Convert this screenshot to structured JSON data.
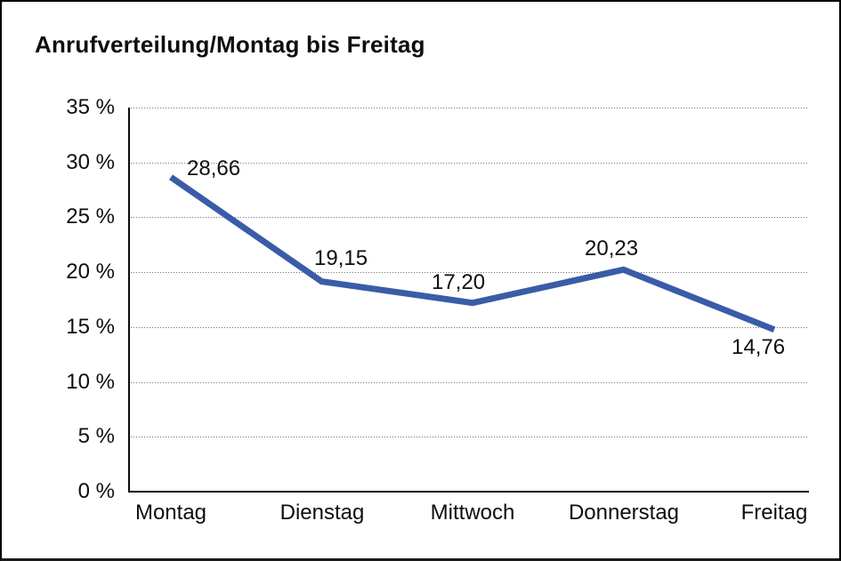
{
  "chart": {
    "line_color": "#3a5ca8",
    "grid_color": "#737373",
    "axis_color": "#0a0a0a",
    "text_color": "#0e0e0e",
    "background": "#ffffff"
  },
  "chart_data": {
    "type": "line",
    "title": "Anrufverteilung/Montag bis Freitag",
    "categories": [
      "Montag",
      "Dienstag",
      "Mittwoch",
      "Donnerstag",
      "Freitag"
    ],
    "series": [
      {
        "name": "Anrufverteilung",
        "values": [
          28.66,
          19.15,
          17.2,
          20.23,
          14.76
        ],
        "point_labels": [
          "28,66",
          "19,15",
          "17,20",
          "20,23",
          "14,76"
        ]
      }
    ],
    "xlabel": "",
    "ylabel": "",
    "ylim": [
      0,
      35
    ],
    "ytick_step": 5,
    "ytick_labels": [
      "35 %",
      "30 %",
      "25 %",
      "20 %",
      "15 %",
      "10 %",
      "5 %",
      "0 %"
    ],
    "grid": "horizontal dotted",
    "legend": "none"
  }
}
